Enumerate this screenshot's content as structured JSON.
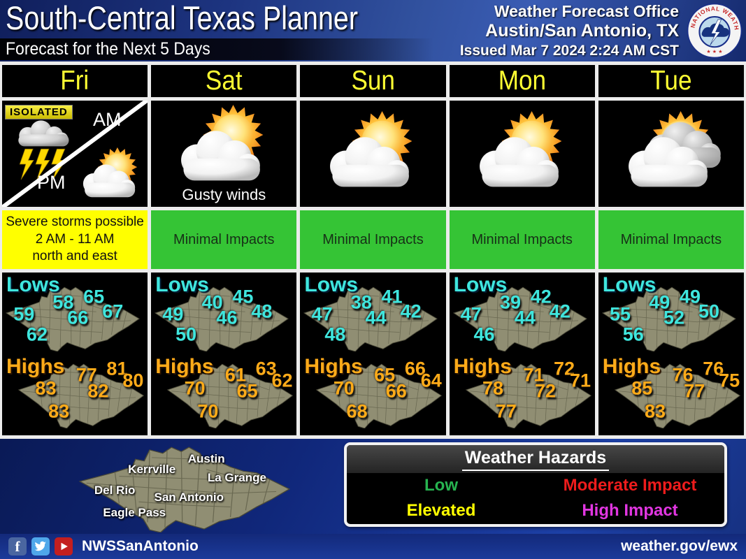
{
  "header": {
    "title": "South-Central Texas Planner",
    "subtitle": "Forecast for the Next 5 Days",
    "office_line1": "Weather Forecast Office",
    "office_line2": "Austin/San Antonio, TX",
    "issued": "Issued Mar 7 2024 2:24 AM CST",
    "logo_name": "national-weather-service-logo"
  },
  "maps": {
    "lows_label": "Lows",
    "highs_label": "Highs",
    "lows_color": "#3fe6de",
    "highs_color": "#ffab19"
  },
  "days": [
    {
      "label": "Fri",
      "icon": "isolated-thunderstorms-am-partly-cloudy-pm",
      "isolated_label": "ISOLATED",
      "am_label": "AM",
      "pm_label": "PM",
      "impact": {
        "lines": [
          "Severe storms possible",
          "2 AM - 11 AM",
          "north and east"
        ],
        "level": "elevated",
        "color": "#ffff00"
      },
      "lows": [
        58,
        65,
        67,
        59,
        66,
        62
      ],
      "highs": [
        77,
        81,
        80,
        83,
        82,
        83
      ]
    },
    {
      "label": "Sat",
      "icon": "partly-cloudy",
      "caption": "Gusty winds",
      "impact": {
        "lines": [
          "Minimal Impacts"
        ],
        "level": "low",
        "color": "#35c435"
      },
      "lows": [
        40,
        45,
        48,
        49,
        46,
        50
      ],
      "highs": [
        61,
        63,
        62,
        70,
        65,
        70
      ]
    },
    {
      "label": "Sun",
      "icon": "partly-cloudy",
      "impact": {
        "lines": [
          "Minimal Impacts"
        ],
        "level": "low",
        "color": "#35c435"
      },
      "lows": [
        38,
        41,
        42,
        47,
        44,
        48
      ],
      "highs": [
        65,
        66,
        64,
        70,
        66,
        68
      ]
    },
    {
      "label": "Mon",
      "icon": "partly-cloudy",
      "impact": {
        "lines": [
          "Minimal Impacts"
        ],
        "level": "low",
        "color": "#35c435"
      },
      "lows": [
        39,
        42,
        42,
        47,
        44,
        46
      ],
      "highs": [
        71,
        72,
        71,
        78,
        72,
        77
      ]
    },
    {
      "label": "Tue",
      "icon": "mostly-cloudy",
      "impact": {
        "lines": [
          "Minimal Impacts"
        ],
        "level": "low",
        "color": "#35c435"
      },
      "lows": [
        49,
        49,
        50,
        55,
        52,
        56
      ],
      "highs": [
        76,
        76,
        75,
        85,
        77,
        83
      ]
    }
  ],
  "region_map": {
    "cities": [
      "Austin",
      "Kerrville",
      "La Grange",
      "Del Rio",
      "San Antonio",
      "Eagle Pass"
    ]
  },
  "hazards": {
    "title": "Weather Hazards",
    "items": [
      {
        "label": "Low",
        "color": "#27b450"
      },
      {
        "label": "Moderate Impact",
        "color": "#ee1c1c"
      },
      {
        "label": "Elevated",
        "color": "#ffff00"
      },
      {
        "label": "High Impact",
        "color": "#e136e1"
      }
    ]
  },
  "footer": {
    "social_handle": "NWSSanAntonio",
    "url": "weather.gov/ewx",
    "icons": [
      {
        "name": "facebook-icon",
        "color": "#4a66a0"
      },
      {
        "name": "twitter-icon",
        "color": "#4fa7ea"
      },
      {
        "name": "youtube-icon",
        "color": "#c41f1f"
      }
    ]
  },
  "chart_data": {
    "type": "table",
    "title": "South-Central Texas Planner",
    "subtitle": "Forecast for the Next 5 Days",
    "categories": [
      "Fri",
      "Sat",
      "Sun",
      "Mon",
      "Tue"
    ],
    "location_slots": [
      "Kerrville area",
      "Austin area",
      "La Grange area",
      "Del Rio area",
      "San Antonio area",
      "Eagle Pass area"
    ],
    "series": [
      {
        "name": "Lows (°F)",
        "per_day": [
          [
            58,
            65,
            67,
            59,
            66,
            62
          ],
          [
            40,
            45,
            48,
            49,
            46,
            50
          ],
          [
            38,
            41,
            42,
            47,
            44,
            48
          ],
          [
            39,
            42,
            42,
            47,
            44,
            46
          ],
          [
            49,
            49,
            50,
            55,
            52,
            56
          ]
        ]
      },
      {
        "name": "Highs (°F)",
        "per_day": [
          [
            77,
            81,
            80,
            83,
            82,
            83
          ],
          [
            61,
            63,
            62,
            70,
            65,
            70
          ],
          [
            65,
            66,
            64,
            70,
            66,
            68
          ],
          [
            71,
            72,
            71,
            78,
            72,
            77
          ],
          [
            76,
            76,
            75,
            85,
            77,
            83
          ]
        ]
      }
    ],
    "conditions": [
      "Isolated storms AM / partly cloudy PM",
      "Partly cloudy, gusty winds",
      "Partly cloudy",
      "Partly cloudy",
      "Mostly cloudy"
    ],
    "impacts": [
      "Severe storms possible 2 AM - 11 AM north and east",
      "Minimal Impacts",
      "Minimal Impacts",
      "Minimal Impacts",
      "Minimal Impacts"
    ]
  }
}
